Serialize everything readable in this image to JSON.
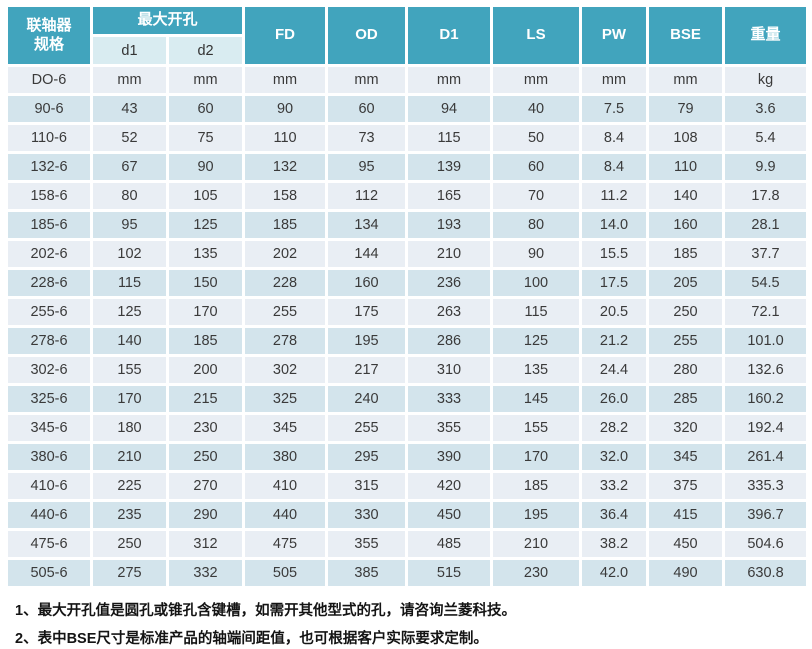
{
  "colors": {
    "header_teal": "#41a4bd",
    "subheader_cyan": "#d9ecf1",
    "row_light": "#e9eef4",
    "row_dark": "#d3e4ec"
  },
  "header": {
    "spec_line1": "联轴器",
    "spec_line2": "规格",
    "max_bore": "最大开孔",
    "sub": [
      "d1",
      "d2"
    ],
    "cols": [
      "FD",
      "OD",
      "D1",
      "LS",
      "PW",
      "BSE",
      "重量"
    ]
  },
  "units_row": [
    "DO-6",
    "mm",
    "mm",
    "mm",
    "mm",
    "mm",
    "mm",
    "mm",
    "mm",
    "kg"
  ],
  "rows": [
    [
      "90-6",
      "43",
      "60",
      "90",
      "60",
      "94",
      "40",
      "7.5",
      "79",
      "3.6"
    ],
    [
      "110-6",
      "52",
      "75",
      "110",
      "73",
      "115",
      "50",
      "8.4",
      "108",
      "5.4"
    ],
    [
      "132-6",
      "67",
      "90",
      "132",
      "95",
      "139",
      "60",
      "8.4",
      "110",
      "9.9"
    ],
    [
      "158-6",
      "80",
      "105",
      "158",
      "112",
      "165",
      "70",
      "11.2",
      "140",
      "17.8"
    ],
    [
      "185-6",
      "95",
      "125",
      "185",
      "134",
      "193",
      "80",
      "14.0",
      "160",
      "28.1"
    ],
    [
      "202-6",
      "102",
      "135",
      "202",
      "144",
      "210",
      "90",
      "15.5",
      "185",
      "37.7"
    ],
    [
      "228-6",
      "115",
      "150",
      "228",
      "160",
      "236",
      "100",
      "17.5",
      "205",
      "54.5"
    ],
    [
      "255-6",
      "125",
      "170",
      "255",
      "175",
      "263",
      "115",
      "20.5",
      "250",
      "72.1"
    ],
    [
      "278-6",
      "140",
      "185",
      "278",
      "195",
      "286",
      "125",
      "21.2",
      "255",
      "101.0"
    ],
    [
      "302-6",
      "155",
      "200",
      "302",
      "217",
      "310",
      "135",
      "24.4",
      "280",
      "132.6"
    ],
    [
      "325-6",
      "170",
      "215",
      "325",
      "240",
      "333",
      "145",
      "26.0",
      "285",
      "160.2"
    ],
    [
      "345-6",
      "180",
      "230",
      "345",
      "255",
      "355",
      "155",
      "28.2",
      "320",
      "192.4"
    ],
    [
      "380-6",
      "210",
      "250",
      "380",
      "295",
      "390",
      "170",
      "32.0",
      "345",
      "261.4"
    ],
    [
      "410-6",
      "225",
      "270",
      "410",
      "315",
      "420",
      "185",
      "33.2",
      "375",
      "335.3"
    ],
    [
      "440-6",
      "235",
      "290",
      "440",
      "330",
      "450",
      "195",
      "36.4",
      "415",
      "396.7"
    ],
    [
      "475-6",
      "250",
      "312",
      "475",
      "355",
      "485",
      "210",
      "38.2",
      "450",
      "504.6"
    ],
    [
      "505-6",
      "275",
      "332",
      "505",
      "385",
      "515",
      "230",
      "42.0",
      "490",
      "630.8"
    ]
  ],
  "notes": [
    "1、最大开孔值是圆孔或锥孔含键槽，如需开其他型式的孔，请咨询兰菱科技。",
    "2、表中BSE尺寸是标准产品的轴端间距值，也可根据客户实际要求定制。"
  ]
}
